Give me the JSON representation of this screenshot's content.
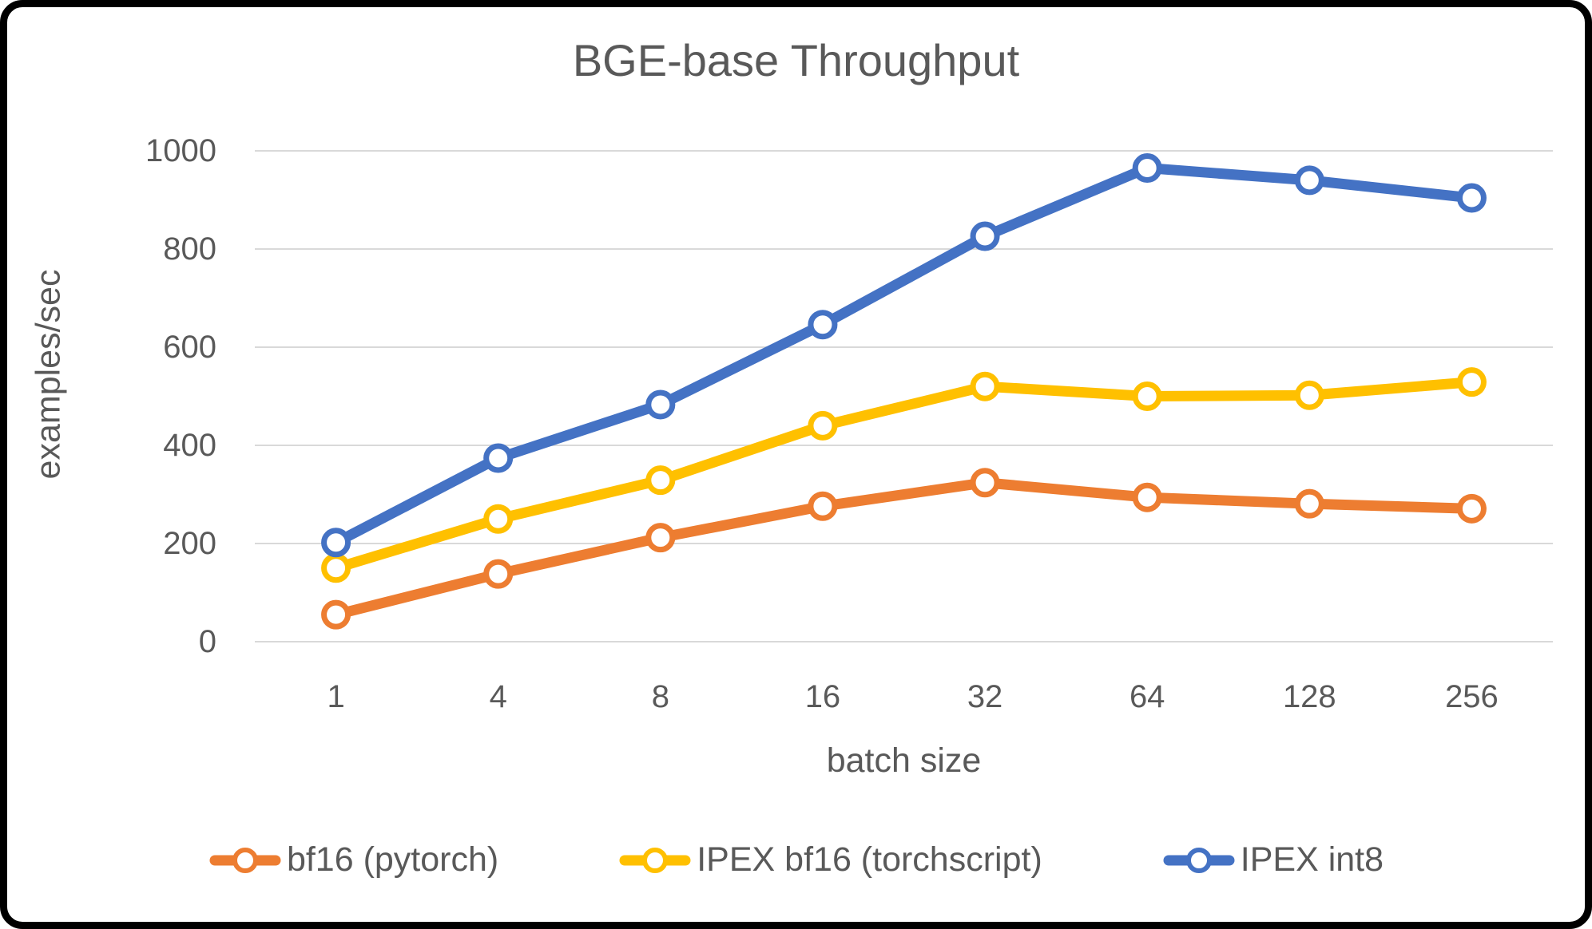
{
  "frame": {
    "border_color": "#000000",
    "background_color": "#ffffff"
  },
  "chart_data": {
    "type": "line",
    "title": "BGE-base Throughput",
    "xlabel": "batch size",
    "ylabel": "examples/sec",
    "categories": [
      "1",
      "4",
      "8",
      "16",
      "32",
      "64",
      "128",
      "256"
    ],
    "ylim": [
      0,
      1000
    ],
    "yticks": [
      0,
      200,
      400,
      600,
      800,
      1000
    ],
    "grid": true,
    "gridline_color": "#D9D9D9",
    "text_color": "#595959",
    "legend_position": "bottom",
    "series": [
      {
        "name": "bf16 (pytorch)",
        "color": "#ED7D31",
        "values": [
          55,
          138,
          212,
          276,
          324,
          294,
          281,
          271
        ]
      },
      {
        "name": "IPEX bf16 (torchscript)",
        "color": "#FFC000",
        "values": [
          150,
          250,
          329,
          440,
          520,
          500,
          502,
          529
        ]
      },
      {
        "name": "IPEX int8",
        "color": "#4472C4",
        "values": [
          202,
          374,
          483,
          646,
          826,
          965,
          940,
          904
        ]
      }
    ]
  }
}
